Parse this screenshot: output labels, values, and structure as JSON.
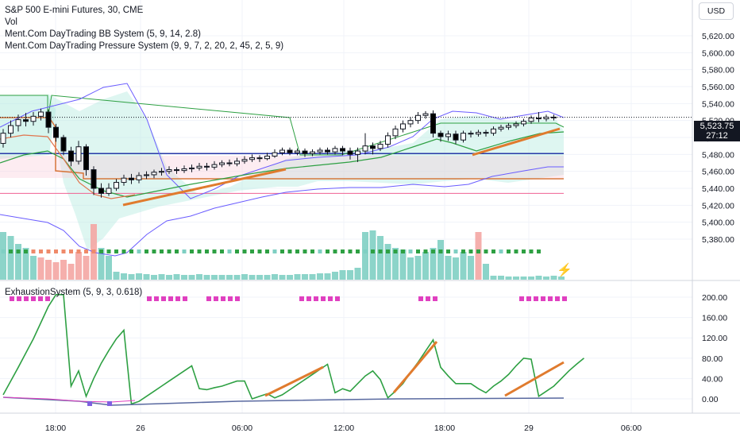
{
  "header": {
    "title": "S&P 500 E-mini Futures, 30, CME",
    "vol_label": "Vol",
    "indicator_bb": "Ment.Com DayTrading BB System (5, 9, 14, 2.8)",
    "indicator_pressure": "Ment.Com DayTrading Pressure System (9, 9, 7, 2, 20, 2, 45, 2, 5, 9)",
    "currency": "USD"
  },
  "price_tag": {
    "price": "5,523.75",
    "countdown": "27:12"
  },
  "sub_pane": {
    "title": "ExhaustionSystem (5, 9, 3, 0.618)"
  },
  "colors": {
    "up_candle": "#ffffff",
    "down_candle": "#000000",
    "bb_band": "#6a5cff",
    "green_line": "#2ea043",
    "orange_trend": "#e07b2e",
    "navy_mid": "#2a3aa8",
    "pink_level": "#f06292",
    "magenta_dots": "#e040c0",
    "cloud_fill": "#b6ece0",
    "vol_teal": "#7fcfc3",
    "vol_red": "#f4a6a3"
  },
  "chart_data": [
    {
      "type": "candlestick",
      "name": "main",
      "y_axis": {
        "ticks": [
          5380,
          5400,
          5420,
          5440,
          5460,
          5480,
          5500,
          5520,
          5540,
          5560,
          5580,
          5600,
          5620
        ],
        "tick_labels": [
          "5,380.00",
          "5,400.00",
          "5,420.00",
          "5,440.00",
          "5,460.00",
          "5,480.00",
          "5,500.00",
          "5,520.00",
          "5,540.00",
          "5,560.00",
          "5,580.00",
          "5,600.00",
          "5,620.00"
        ]
      },
      "x_axis": {
        "tick_labels": [
          "18:00",
          "26",
          "06:00",
          "12:00",
          "18:00",
          "29",
          "06:00"
        ]
      },
      "last_price": 5523.75,
      "candles": [
        [
          5493,
          5505,
          5488,
          5510
        ],
        [
          5505,
          5514,
          5500,
          5520
        ],
        [
          5514,
          5521,
          5507,
          5527
        ],
        [
          5521,
          5519,
          5513,
          5529
        ],
        [
          5519,
          5525,
          5514,
          5530
        ],
        [
          5525,
          5530,
          5520,
          5534
        ],
        [
          5530,
          5512,
          5505,
          5533
        ],
        [
          5512,
          5500,
          5495,
          5516
        ],
        [
          5500,
          5484,
          5479,
          5503
        ],
        [
          5484,
          5472,
          5466,
          5489
        ],
        [
          5472,
          5489,
          5468,
          5496
        ],
        [
          5489,
          5462,
          5455,
          5492
        ],
        [
          5462,
          5440,
          5432,
          5466
        ],
        [
          5440,
          5434,
          5429,
          5446
        ],
        [
          5434,
          5440,
          5431,
          5446
        ],
        [
          5440,
          5447,
          5437,
          5451
        ],
        [
          5447,
          5452,
          5443,
          5456
        ],
        [
          5452,
          5450,
          5445,
          5457
        ],
        [
          5450,
          5455,
          5446,
          5459
        ],
        [
          5455,
          5456,
          5451,
          5460
        ],
        [
          5456,
          5459,
          5452,
          5462
        ],
        [
          5459,
          5460,
          5455,
          5464
        ],
        [
          5460,
          5462,
          5457,
          5466
        ],
        [
          5462,
          5461,
          5457,
          5465
        ],
        [
          5461,
          5463,
          5458,
          5467
        ],
        [
          5463,
          5464,
          5459,
          5468
        ],
        [
          5464,
          5466,
          5461,
          5470
        ],
        [
          5466,
          5465,
          5461,
          5470
        ],
        [
          5465,
          5468,
          5462,
          5472
        ],
        [
          5468,
          5470,
          5465,
          5473
        ],
        [
          5470,
          5469,
          5466,
          5474
        ],
        [
          5469,
          5472,
          5466,
          5476
        ],
        [
          5472,
          5474,
          5469,
          5478
        ],
        [
          5474,
          5476,
          5471,
          5480
        ],
        [
          5476,
          5475,
          5471,
          5479
        ],
        [
          5475,
          5478,
          5473,
          5482
        ],
        [
          5478,
          5482,
          5476,
          5486
        ],
        [
          5482,
          5485,
          5479,
          5488
        ],
        [
          5485,
          5482,
          5479,
          5488
        ],
        [
          5482,
          5484,
          5479,
          5487
        ],
        [
          5484,
          5481,
          5477,
          5487
        ],
        [
          5481,
          5483,
          5478,
          5486
        ],
        [
          5483,
          5485,
          5480,
          5488
        ],
        [
          5485,
          5483,
          5480,
          5488
        ],
        [
          5483,
          5487,
          5480,
          5490
        ],
        [
          5487,
          5484,
          5479,
          5490
        ],
        [
          5484,
          5480,
          5474,
          5488
        ],
        [
          5480,
          5484,
          5471,
          5488
        ],
        [
          5484,
          5490,
          5480,
          5505
        ],
        [
          5490,
          5487,
          5480,
          5494
        ],
        [
          5487,
          5492,
          5484,
          5496
        ],
        [
          5492,
          5502,
          5488,
          5506
        ],
        [
          5502,
          5510,
          5498,
          5514
        ],
        [
          5510,
          5516,
          5506,
          5520
        ],
        [
          5516,
          5520,
          5512,
          5524
        ],
        [
          5520,
          5526,
          5516,
          5530
        ],
        [
          5526,
          5528,
          5522,
          5531
        ],
        [
          5528,
          5505,
          5500,
          5532
        ],
        [
          5505,
          5501,
          5495,
          5508
        ],
        [
          5501,
          5504,
          5496,
          5508
        ],
        [
          5504,
          5497,
          5492,
          5508
        ],
        [
          5497,
          5505,
          5494,
          5508
        ],
        [
          5505,
          5504,
          5500,
          5508
        ],
        [
          5504,
          5506,
          5501,
          5509
        ],
        [
          5506,
          5505,
          5501,
          5509
        ],
        [
          5505,
          5510,
          5502,
          5513
        ],
        [
          5510,
          5512,
          5507,
          5515
        ],
        [
          5512,
          5514,
          5509,
          5517
        ],
        [
          5514,
          5516,
          5511,
          5519
        ],
        [
          5516,
          5519,
          5513,
          5522
        ],
        [
          5519,
          5523,
          5516,
          5526
        ],
        [
          5523,
          5522,
          5518,
          5530
        ],
        [
          5522,
          5524,
          5519,
          5527
        ],
        [
          5524,
          5523.75,
          5520,
          5527
        ]
      ]
    },
    {
      "type": "line",
      "name": "ExhaustionSystem",
      "y_axis": {
        "ticks": [
          0,
          40,
          80,
          120,
          160,
          200
        ],
        "tick_labels": [
          "0.00",
          "40.00",
          "80.00",
          "120.00",
          "160.00",
          "200.00"
        ]
      },
      "series": [
        {
          "values": [
            8,
            35,
            62,
            90,
            118,
            150,
            182,
            205,
            205,
            25,
            55,
            5,
            40,
            70,
            95,
            118,
            135,
            -10,
            -5,
            5,
            15,
            25,
            35,
            45,
            55,
            65,
            20,
            18,
            22,
            25,
            30,
            35,
            35,
            0,
            5,
            10,
            2,
            8,
            18,
            28,
            38,
            48,
            58,
            68,
            12,
            20,
            15,
            30,
            45,
            55,
            38,
            2,
            15,
            30,
            52,
            72,
            94,
            116,
            62,
            45,
            30,
            30,
            30,
            20,
            12,
            25,
            35,
            48,
            65,
            80,
            78,
            5,
            15,
            25,
            40,
            55,
            68,
            80
          ]
        }
      ]
    }
  ]
}
